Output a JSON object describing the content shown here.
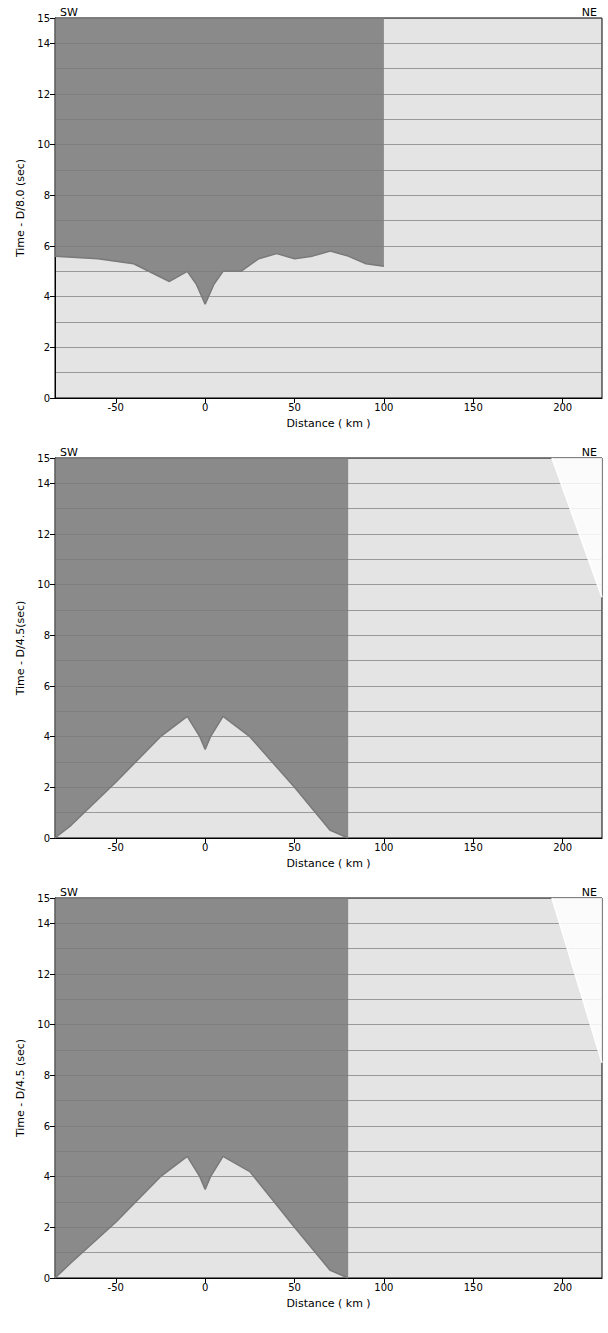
{
  "chart_data": [
    {
      "type": "line",
      "title_left": "SW",
      "title_right": "NE",
      "xlabel": "Distance ( km )",
      "ylabel": "Time - D/8.0 (sec)",
      "xlim": [
        -84,
        222
      ],
      "xticks": [
        -50,
        0,
        50,
        100,
        150,
        200
      ],
      "ylim": [
        0,
        15
      ],
      "yticks": [
        0,
        2,
        4,
        6,
        8,
        10,
        12,
        14
      ],
      "grid": true,
      "series": [
        {
          "type": "line",
          "color": "#7a7a7a",
          "x": [
            -84,
            -60,
            -40,
            -20,
            -10,
            -5,
            0,
            5,
            10,
            20,
            30,
            40,
            50,
            60,
            70,
            80,
            90,
            100
          ],
          "values": [
            5.6,
            5.5,
            5.3,
            4.6,
            5.0,
            4.5,
            3.7,
            4.5,
            5.0,
            5.0,
            5.5,
            5.7,
            5.5,
            5.6,
            5.8,
            5.6,
            5.3,
            5.2
          ]
        }
      ]
    },
    {
      "type": "line",
      "title_left": "SW",
      "title_right": "NE",
      "xlabel": "Distance ( km )",
      "ylabel": "Time - D/4.5(sec)",
      "xlim": [
        -84,
        222
      ],
      "xticks": [
        -50,
        0,
        50,
        100,
        150,
        200
      ],
      "ylim": [
        0,
        15
      ],
      "yticks": [
        0,
        2,
        4,
        6,
        8,
        10,
        12,
        14
      ],
      "grid": true,
      "series": [
        {
          "type": "line",
          "color": "#7a7a7a",
          "x": [
            -84,
            -75,
            -50,
            -25,
            -10,
            -3,
            0,
            3,
            10,
            25,
            50,
            70,
            80
          ],
          "values": [
            0,
            0.5,
            2.2,
            4.0,
            4.8,
            4.0,
            3.5,
            4.0,
            4.8,
            4.0,
            2.0,
            0.3,
            0
          ]
        },
        {
          "type": "line",
          "color": "#ffffff",
          "x": [
            194,
            222
          ],
          "values": [
            15,
            9.5
          ]
        }
      ]
    },
    {
      "type": "line",
      "title_left": "SW",
      "title_right": "NE",
      "xlabel": "Distance ( km )",
      "ylabel": "Time - D/4.5 (sec)",
      "xlim": [
        -84,
        222
      ],
      "xticks": [
        -50,
        0,
        50,
        100,
        150,
        200
      ],
      "ylim": [
        0,
        15
      ],
      "yticks": [
        0,
        2,
        4,
        6,
        8,
        10,
        12,
        14
      ],
      "grid": true,
      "series": [
        {
          "type": "line",
          "color": "#7a7a7a",
          "x": [
            -84,
            -75,
            -50,
            -25,
            -10,
            -3,
            0,
            3,
            10,
            25,
            50,
            70,
            80
          ],
          "values": [
            0,
            0.6,
            2.2,
            4.0,
            4.8,
            4.0,
            3.5,
            4.0,
            4.8,
            4.2,
            2.0,
            0.3,
            0
          ]
        },
        {
          "type": "line",
          "color": "#ffffff",
          "x": [
            194,
            222
          ],
          "values": [
            15,
            8.5
          ]
        }
      ]
    }
  ]
}
